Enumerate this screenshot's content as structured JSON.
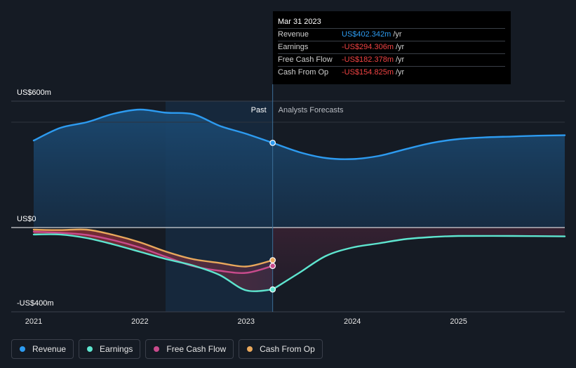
{
  "chart_data": {
    "type": "line",
    "title": "",
    "xlabel": "",
    "ylabel": "",
    "ylim": [
      -400,
      600
    ],
    "xlim": [
      2021,
      2026
    ],
    "x_ticks": [
      {
        "value": 2021,
        "label": "2021"
      },
      {
        "value": 2022,
        "label": "2022"
      },
      {
        "value": 2023,
        "label": "2023"
      },
      {
        "value": 2024,
        "label": "2024"
      },
      {
        "value": 2025,
        "label": "2025"
      }
    ],
    "y_labels": [
      {
        "value": 600,
        "label": "US$600m"
      },
      {
        "value": 0,
        "label": "US$0"
      },
      {
        "value": -400,
        "label": "-US$400m"
      }
    ],
    "divider_x": 2023.25,
    "past_label": "Past",
    "forecast_label": "Analysts Forecasts",
    "series": [
      {
        "name": "Revenue",
        "color": "#2d9bf0",
        "past": [
          [
            2021.0,
            413
          ],
          [
            2021.25,
            473
          ],
          [
            2021.5,
            500
          ],
          [
            2021.75,
            540
          ],
          [
            2022.0,
            560
          ],
          [
            2022.25,
            545
          ],
          [
            2022.5,
            538
          ],
          [
            2022.75,
            483
          ],
          [
            2023.0,
            445
          ],
          [
            2023.25,
            402
          ]
        ],
        "forecast": [
          [
            2023.25,
            402
          ],
          [
            2023.5,
            358
          ],
          [
            2023.75,
            330
          ],
          [
            2024.0,
            325
          ],
          [
            2024.25,
            340
          ],
          [
            2024.5,
            372
          ],
          [
            2024.75,
            402
          ],
          [
            2025.0,
            420
          ],
          [
            2025.25,
            428
          ],
          [
            2025.5,
            432
          ],
          [
            2025.75,
            436
          ],
          [
            2026.0,
            438
          ]
        ]
      },
      {
        "name": "Earnings",
        "color": "#5ee5cf",
        "past": [
          [
            2021.0,
            -33
          ],
          [
            2021.25,
            -33
          ],
          [
            2021.5,
            -50
          ],
          [
            2021.75,
            -80
          ],
          [
            2022.0,
            -115
          ],
          [
            2022.25,
            -150
          ],
          [
            2022.5,
            -180
          ],
          [
            2022.75,
            -225
          ],
          [
            2023.0,
            -298
          ],
          [
            2023.25,
            -294
          ]
        ],
        "forecast": [
          [
            2023.25,
            -294
          ],
          [
            2023.5,
            -215
          ],
          [
            2023.75,
            -135
          ],
          [
            2024.0,
            -95
          ],
          [
            2024.25,
            -75
          ],
          [
            2024.5,
            -55
          ],
          [
            2024.75,
            -45
          ],
          [
            2025.0,
            -40
          ],
          [
            2025.5,
            -40
          ],
          [
            2026.0,
            -42
          ]
        ]
      },
      {
        "name": "Free Cash Flow",
        "color": "#c84b8c",
        "past": [
          [
            2021.0,
            -20
          ],
          [
            2021.25,
            -25
          ],
          [
            2021.5,
            -35
          ],
          [
            2021.75,
            -60
          ],
          [
            2022.0,
            -95
          ],
          [
            2022.25,
            -140
          ],
          [
            2022.5,
            -183
          ],
          [
            2022.75,
            -205
          ],
          [
            2023.0,
            -215
          ],
          [
            2023.25,
            -182
          ]
        ],
        "forecast": []
      },
      {
        "name": "Cash From Op",
        "color": "#e9a85c",
        "past": [
          [
            2021.0,
            -10
          ],
          [
            2021.25,
            -12
          ],
          [
            2021.5,
            -10
          ],
          [
            2021.75,
            -35
          ],
          [
            2022.0,
            -70
          ],
          [
            2022.25,
            -115
          ],
          [
            2022.5,
            -150
          ],
          [
            2022.75,
            -168
          ],
          [
            2023.0,
            -185
          ],
          [
            2023.25,
            -155
          ]
        ],
        "forecast": []
      }
    ]
  },
  "tooltip": {
    "date": "Mar 31 2023",
    "rows": [
      {
        "label": "Revenue",
        "value": "US$402.342m",
        "unit": "/yr"
      },
      {
        "label": "Earnings",
        "value": "-US$294.306m",
        "unit": "/yr"
      },
      {
        "label": "Free Cash Flow",
        "value": "-US$182.378m",
        "unit": "/yr"
      },
      {
        "label": "Cash From Op",
        "value": "-US$154.825m",
        "unit": "/yr"
      }
    ]
  },
  "legend": [
    {
      "label": "Revenue",
      "color": "#2d9bf0"
    },
    {
      "label": "Earnings",
      "color": "#5ee5cf"
    },
    {
      "label": "Free Cash Flow",
      "color": "#c84b8c"
    },
    {
      "label": "Cash From Op",
      "color": "#e9a85c"
    }
  ]
}
